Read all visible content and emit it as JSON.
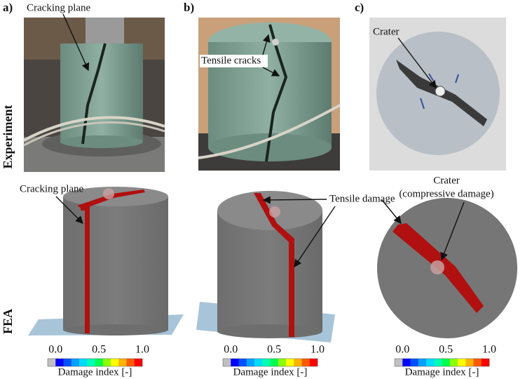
{
  "row_labels": [
    "Experiment",
    "FEA"
  ],
  "panels": [
    {
      "label": "a)",
      "photo_annotations": [
        "Cracking plane"
      ],
      "fea_annotations": [
        "Cracking plane"
      ]
    },
    {
      "label": "b)",
      "photo_annotations": [
        "Tensile cracks"
      ],
      "fea_annotations": [
        "Tensile damage"
      ]
    },
    {
      "label": "c)",
      "photo_annotations": [
        "Crater"
      ],
      "fea_annotations": [
        "Crater",
        "(compressive damage)"
      ]
    }
  ],
  "colorbar": {
    "ticks": [
      "0.0",
      "0.5",
      "1.0"
    ],
    "title": "Damage index [-]",
    "colors": [
      "#c0c0c0",
      "#0000ff",
      "#0050ff",
      "#00a0ff",
      "#00dcff",
      "#00ffb4",
      "#00ff50",
      "#8cff00",
      "#ffff00",
      "#ffb400",
      "#ff5a00",
      "#ff0000"
    ]
  }
}
